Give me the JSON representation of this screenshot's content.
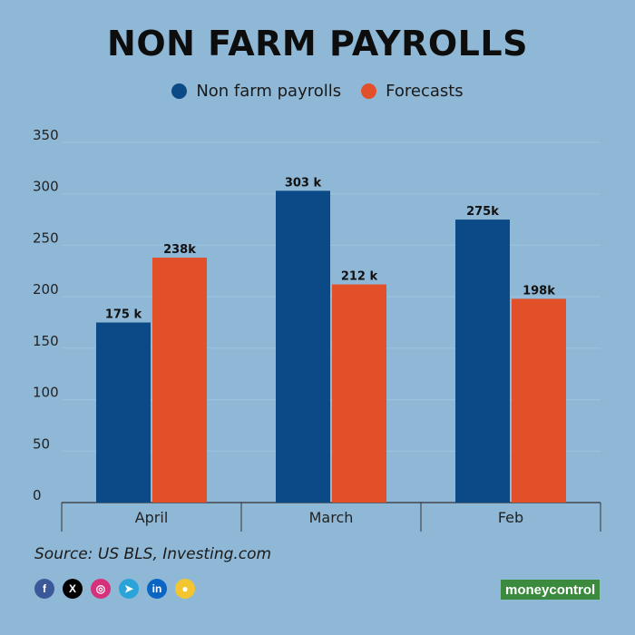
{
  "chart_data": {
    "type": "bar",
    "title": "NON FARM PAYROLLS",
    "categories": [
      "April",
      "March",
      "Feb"
    ],
    "series": [
      {
        "name": "Non farm payrolls",
        "color": "#0b4a87",
        "values": [
          175,
          303,
          275
        ],
        "labels": [
          "175 k",
          "303 k",
          "275k"
        ]
      },
      {
        "name": "Forecasts",
        "color": "#e2502a",
        "values": [
          238,
          212,
          198
        ],
        "labels": [
          "238k",
          "212 k",
          "198k"
        ]
      }
    ],
    "yticks": [
      0,
      50,
      100,
      150,
      200,
      250,
      300,
      350
    ],
    "ylim": [
      0,
      350
    ],
    "xlabel": "",
    "ylabel": "",
    "grid": true,
    "legend_position": "top-center"
  },
  "source": "Source: US BLS, Investing.com",
  "socials": [
    {
      "icon": "facebook-icon",
      "glyph": "f",
      "color": "#3b5998"
    },
    {
      "icon": "x-icon",
      "glyph": "X",
      "color": "#000000"
    },
    {
      "icon": "instagram-icon",
      "glyph": "◎",
      "color": "#d6307a"
    },
    {
      "icon": "telegram-icon",
      "glyph": "➤",
      "color": "#2aa3d9"
    },
    {
      "icon": "linkedin-icon",
      "glyph": "in",
      "color": "#0a66c2"
    },
    {
      "icon": "koo-icon",
      "glyph": "●",
      "color": "#f2c531"
    }
  ],
  "brand": {
    "part1": "money",
    "part2": "control"
  },
  "colors": {
    "background": "#8fb8d6",
    "grid": "#9dc3de",
    "axis": "#333333"
  }
}
